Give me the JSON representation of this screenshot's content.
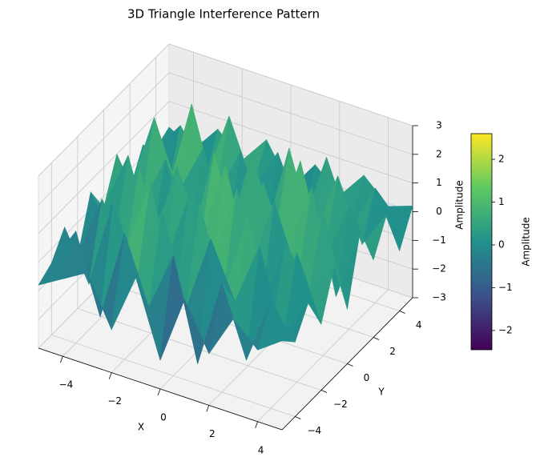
{
  "chart_data": {
    "type": "surface3d",
    "title": "3D Triangle Interference Pattern",
    "xlabel": "X",
    "ylabel": "Y",
    "zlabel": "Amplitude",
    "colorbar_label": "Amplitude",
    "colormap": "viridis",
    "xlim": [
      -5,
      5
    ],
    "ylim": [
      -5,
      5
    ],
    "zlim": [
      -3,
      3
    ],
    "clim": [
      -2.45,
      2.6
    ],
    "xticks": [
      {
        "value": -4,
        "label": "−4"
      },
      {
        "value": -2,
        "label": "−2"
      },
      0,
      2,
      4
    ],
    "yticks": [
      {
        "value": -4,
        "label": "−4"
      },
      {
        "value": -2,
        "label": "−2"
      },
      0,
      2,
      4
    ],
    "zticks": [
      {
        "value": -3,
        "label": "−3"
      },
      {
        "value": -2,
        "label": "−2"
      },
      {
        "value": -1,
        "label": "−1"
      },
      0,
      1,
      2,
      3
    ],
    "cticks": [
      {
        "value": -2,
        "label": "−2"
      },
      {
        "value": -1,
        "label": "−1"
      },
      0,
      1,
      2
    ],
    "grid": true,
    "x": [
      -5,
      -4,
      -3,
      -2,
      -1,
      0,
      1,
      2,
      3,
      4,
      5
    ],
    "y": [
      -5,
      -4,
      -3,
      -2,
      -1,
      0,
      1,
      2,
      3,
      4,
      5
    ],
    "z": [
      [
        -0.8,
        -0.3,
        0.2,
        -1.5,
        0.6,
        -2.0,
        0.4,
        -1.2,
        0.3,
        -0.5,
        0.1
      ],
      [
        -0.5,
        0.9,
        -1.8,
        1.4,
        -0.9,
        1.2,
        -2.3,
        0.8,
        -1.6,
        0.7,
        -0.4
      ],
      [
        0.3,
        -1.4,
        1.8,
        -0.6,
        2.0,
        -1.1,
        1.6,
        -0.3,
        1.9,
        -1.0,
        0.5
      ],
      [
        -1.2,
        1.1,
        -0.4,
        2.3,
        -1.7,
        2.1,
        -0.8,
        2.2,
        -1.3,
        1.5,
        -0.7
      ],
      [
        0.6,
        -0.9,
        2.0,
        -1.2,
        1.5,
        -0.5,
        2.4,
        -1.6,
        1.1,
        -0.2,
        0.9
      ],
      [
        -0.4,
        1.7,
        -1.1,
        1.9,
        -0.3,
        2.5,
        -1.0,
        1.8,
        -0.6,
        2.0,
        -1.1
      ],
      [
        1.0,
        -0.6,
        1.4,
        -1.5,
        2.2,
        -0.9,
        1.7,
        -0.4,
        2.1,
        -1.4,
        1.2
      ],
      [
        -0.7,
        2.1,
        -0.2,
        1.6,
        -1.2,
        1.9,
        -0.5,
        2.3,
        -0.9,
        1.3,
        -0.3
      ],
      [
        0.4,
        -1.0,
        2.4,
        -0.6,
        1.3,
        -1.4,
        2.0,
        -0.8,
        1.6,
        -0.5,
        0.8
      ],
      [
        -0.2,
        0.9,
        -0.8,
        1.8,
        -0.4,
        1.1,
        -1.2,
        1.5,
        -0.7,
        1.0,
        -0.9
      ],
      [
        0.1,
        -0.4,
        0.6,
        -0.2,
        0.8,
        -0.6,
        0.5,
        -0.3,
        0.7,
        -0.1,
        0.2
      ]
    ]
  }
}
